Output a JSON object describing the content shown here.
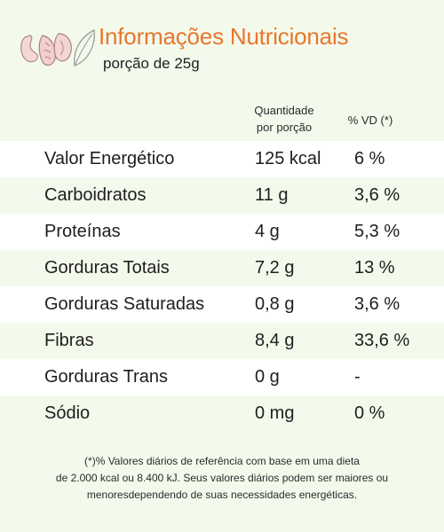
{
  "header": {
    "title": "Informações Nutricionais",
    "subtitle": "porção de 25g",
    "logo_icon": "nuts-and-leaf-icon"
  },
  "columns": {
    "quantity_line1": "Quantidade",
    "quantity_line2": "por porção",
    "daily_value": "% VD (*)"
  },
  "rows": [
    {
      "name": "Valor Energético",
      "quantity": "125 kcal",
      "dv": "6 %"
    },
    {
      "name": "Carboidratos",
      "quantity": "11 g",
      "dv": "3,6 %"
    },
    {
      "name": "Proteínas",
      "quantity": "4 g",
      "dv": "5,3 %"
    },
    {
      "name": "Gorduras Totais",
      "quantity": "7,2 g",
      "dv": "13 %"
    },
    {
      "name": "Gorduras Saturadas",
      "quantity": "0,8 g",
      "dv": "3,6 %"
    },
    {
      "name": "Fibras",
      "quantity": "8,4 g",
      "dv": "33,6 %"
    },
    {
      "name": "Gorduras Trans",
      "quantity": "0 g",
      "dv": "-"
    },
    {
      "name": "Sódio",
      "quantity": "0 mg",
      "dv": "0 %"
    }
  ],
  "footnote": {
    "line1": "(*)% Valores diários de referência com base em uma dieta",
    "line2": "de 2.000 kcal ou 8.400 kJ. Seus valores diários podem ser maiores ou",
    "line3": "menoresdependendo de suas necessidades energéticas."
  },
  "colors": {
    "accent": "#e8762b",
    "background": "#f3faec",
    "row_white": "#ffffff"
  }
}
